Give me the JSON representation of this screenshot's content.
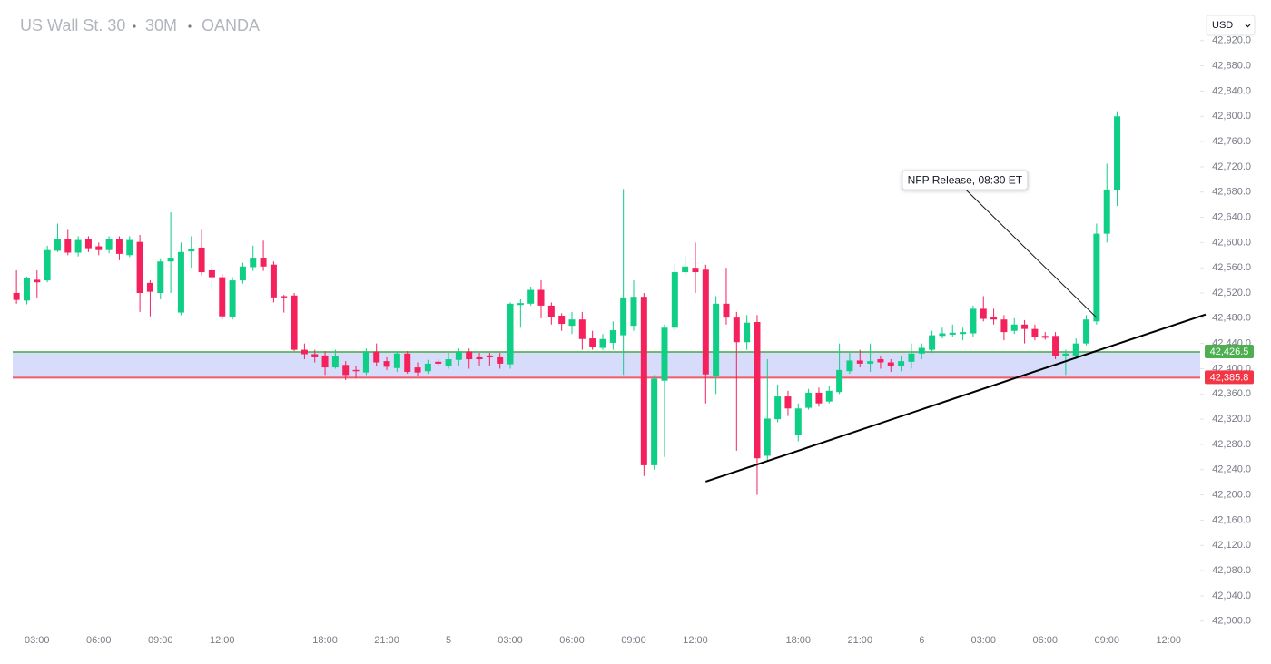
{
  "chart_data": {
    "type": "candlestick",
    "title": "US Wall St. 30",
    "interval": "30M",
    "source": "OANDA",
    "currency": "USD",
    "up_color": "#0fcf86",
    "down_color": "#f5215c",
    "categories": [
      null,
      null,
      "03:00",
      null,
      null,
      null,
      null,
      null,
      "06:00",
      null,
      null,
      null,
      null,
      null,
      "09:00",
      null,
      null,
      null,
      null,
      null,
      "12:00",
      null,
      null,
      null,
      null,
      null,
      null,
      null,
      null,
      null,
      "18:00",
      null,
      null,
      null,
      null,
      null,
      "21:00",
      null,
      null,
      null,
      null,
      null,
      "5",
      null,
      null,
      null,
      null,
      null,
      "03:00",
      null,
      null,
      null,
      null,
      null,
      "06:00",
      null,
      null,
      null,
      null,
      null,
      "09:00",
      null,
      null,
      null,
      null,
      null,
      "12:00",
      null,
      null,
      null,
      null,
      null,
      null,
      null,
      null,
      null,
      "18:00",
      null,
      null,
      null,
      null,
      null,
      "21:00",
      null,
      null,
      null,
      null,
      null,
      "6",
      null,
      null,
      null,
      null,
      null,
      "03:00",
      null,
      null,
      null,
      null,
      null,
      "06:00",
      null,
      null,
      null,
      null,
      null,
      "09:00",
      null,
      null,
      null,
      null,
      null,
      "12:00"
    ],
    "open": [
      42520,
      42508,
      42541,
      42540,
      42587,
      42605,
      42584,
      42605,
      42594,
      42588,
      42605,
      42580,
      42601,
      42536,
      42520,
      42570,
      42489,
      42586,
      42592,
      42556,
      42545,
      42482,
      42540,
      42561,
      42576,
      42565,
      42515,
      42516,
      42430,
      42423,
      42421,
      42402,
      42406,
      42398,
      42394,
      42427,
      42412,
      42401,
      42424,
      42402,
      42396,
      42411,
      42405,
      42414,
      42427,
      42418,
      42421,
      42418,
      42407,
      42501,
      42503,
      42525,
      42500,
      42484,
      42468,
      42478,
      42448,
      42433,
      42441,
      42453,
      42468,
      42514,
      42247,
      42381,
      42465,
      42553,
      42560,
      42557,
      42388,
      42503,
      42481,
      42442,
      42474,
      42262,
      42320,
      42356,
      42295,
      42338,
      42362,
      42348,
      42363,
      42396,
      42413,
      42408,
      42415,
      42410,
      42405,
      42411,
      42424,
      42430,
      42452,
      42454,
      42455,
      42456,
      42495,
      42482,
      42478,
      42460,
      42470,
      42463,
      42452,
      42452,
      42420,
      42420,
      42440,
      42475,
      42614,
      42683,
      null,
      null,
      null,
      null,
      null
    ],
    "high": [
      42556,
      42546,
      42556,
      42595,
      42630,
      42620,
      42610,
      42610,
      42600,
      42610,
      42610,
      42610,
      42612,
      42540,
      42575,
      42648,
      42600,
      42610,
      42620,
      42570,
      42550,
      42545,
      42568,
      42595,
      42603,
      42570,
      42517,
      42520,
      42440,
      42430,
      42428,
      42430,
      42412,
      42405,
      42432,
      42440,
      42418,
      42428,
      42428,
      42410,
      42414,
      42415,
      42425,
      42432,
      42432,
      42425,
      42425,
      42425,
      42505,
      42510,
      42530,
      42540,
      42505,
      42488,
      42490,
      42490,
      42460,
      42455,
      42475,
      42685,
      42540,
      42520,
      42390,
      42470,
      42565,
      42580,
      42600,
      42565,
      42515,
      42560,
      42490,
      42485,
      42485,
      42415,
      42375,
      42365,
      42345,
      42368,
      42370,
      42372,
      42440,
      42425,
      42430,
      42440,
      42420,
      42415,
      42420,
      42440,
      42440,
      42460,
      42465,
      42470,
      42465,
      42500,
      42515,
      42495,
      42485,
      42480,
      42477,
      42470,
      42458,
      42458,
      42430,
      42448,
      42485,
      42630,
      42725,
      42808,
      null,
      null,
      null,
      null,
      null
    ],
    "low": [
      42503,
      42502,
      42513,
      42537,
      42585,
      42580,
      42578,
      42585,
      42580,
      42583,
      42572,
      42577,
      42490,
      42483,
      42510,
      42520,
      42485,
      42560,
      42548,
      42525,
      42478,
      42478,
      42535,
      42555,
      42555,
      42505,
      42489,
      42428,
      42415,
      42410,
      42390,
      42400,
      42382,
      42385,
      42390,
      42405,
      42398,
      42395,
      42392,
      42388,
      42392,
      42405,
      42400,
      42405,
      42400,
      42405,
      42405,
      42400,
      42400,
      42465,
      42500,
      42480,
      42470,
      42460,
      42455,
      42430,
      42430,
      42430,
      42430,
      42390,
      42460,
      42230,
      42240,
      42260,
      42460,
      42548,
      42520,
      42345,
      42360,
      42470,
      42270,
      42430,
      42200,
      42255,
      42315,
      42325,
      42285,
      42335,
      42340,
      42345,
      42360,
      42392,
      42402,
      42395,
      42400,
      42395,
      42396,
      42400,
      42415,
      42425,
      42448,
      42450,
      42445,
      42450,
      42475,
      42470,
      42445,
      42455,
      42440,
      42445,
      42446,
      42415,
      42390,
      42415,
      42437,
      42470,
      42600,
      42658,
      null,
      null,
      null,
      null,
      null
    ],
    "close": [
      42509,
      42543,
      42537,
      42588,
      42606,
      42584,
      42604,
      42591,
      42588,
      42605,
      42582,
      42604,
      42520,
      42522,
      42570,
      42576,
      42585,
      42590,
      42553,
      42545,
      42483,
      42540,
      42562,
      42576,
      42562,
      42513,
      42513,
      42430,
      42423,
      42418,
      42402,
      42420,
      42390,
      42396,
      42427,
      42410,
      42403,
      42424,
      42395,
      42394,
      42408,
      42408,
      42415,
      42427,
      42415,
      42415,
      42418,
      42408,
      42503,
      42504,
      42525,
      42500,
      42482,
      42471,
      42478,
      42447,
      42434,
      42447,
      42461,
      42513,
      42514,
      42247,
      42384,
      42465,
      42553,
      42562,
      42553,
      42391,
      42503,
      42481,
      42442,
      42473,
      42258,
      42321,
      42356,
      42337,
      42337,
      42362,
      42345,
      42365,
      42398,
      42413,
      42408,
      42412,
      42410,
      42405,
      42412,
      42424,
      42433,
      42453,
      42456,
      42457,
      42458,
      42495,
      42479,
      42478,
      42458,
      42470,
      42463,
      42450,
      42449,
      42420,
      42424,
      42440,
      42478,
      42614,
      42684,
      42800,
      null,
      null,
      null,
      null,
      null
    ],
    "xlim": [
      -1.6,
      115.6
    ],
    "ylim": [
      41978,
      42970
    ],
    "yticks": [
      {
        "value": 42000,
        "label": "42,000.0"
      },
      {
        "value": 42040,
        "label": "42,040.0"
      },
      {
        "value": 42080,
        "label": "42,080.0"
      },
      {
        "value": 42120,
        "label": "42,120.0"
      },
      {
        "value": 42160,
        "label": "42,160.0"
      },
      {
        "value": 42200,
        "label": "42,200.0"
      },
      {
        "value": 42240,
        "label": "42,240.0"
      },
      {
        "value": 42280,
        "label": "42,280.0"
      },
      {
        "value": 42320,
        "label": "42,320.0"
      },
      {
        "value": 42360,
        "label": "42,360.0"
      },
      {
        "value": 42400,
        "label": "42,400.0"
      },
      {
        "value": 42440,
        "label": "42,440.0"
      },
      {
        "value": 42480,
        "label": "42,480.0"
      },
      {
        "value": 42520,
        "label": "42,520.0"
      },
      {
        "value": 42560,
        "label": "42,560.0"
      },
      {
        "value": 42600,
        "label": "42,600.0"
      },
      {
        "value": 42640,
        "label": "42,640.0"
      },
      {
        "value": 42680,
        "label": "42,680.0"
      },
      {
        "value": 42720,
        "label": "42,720.0"
      },
      {
        "value": 42760,
        "label": "42,760.0"
      },
      {
        "value": 42800,
        "label": "42,800.0"
      },
      {
        "value": 42840,
        "label": "42,840.0"
      },
      {
        "value": 42880,
        "label": "42,880.0"
      },
      {
        "value": 42920,
        "label": "42,920.0"
      }
    ],
    "hlines": [
      {
        "value": 42426.5,
        "label": "42,426.5",
        "color": "#4caf50"
      },
      {
        "value": 42385.8,
        "label": "42,385.8",
        "color": "#f23645"
      }
    ],
    "band_color": "#d7dcfb",
    "trendline": {
      "x": [
        67,
        115.6
      ],
      "y": [
        42221,
        42486
      ],
      "color": "#000000"
    },
    "annotation": {
      "text": "NFP Release, 08:30 ET",
      "x": 105,
      "y": 42481
    }
  }
}
